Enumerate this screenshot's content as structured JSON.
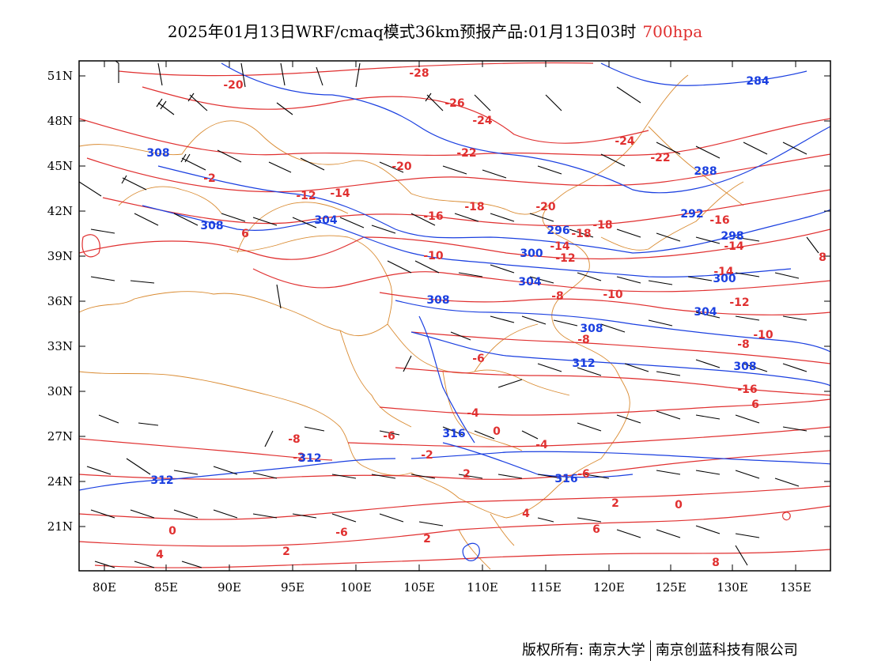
{
  "title": {
    "main": "2025年01月13日WRF/cmaq模式36km预报产品:01月13日03时",
    "level": "700hpa"
  },
  "axes": {
    "lat_labels": [
      "51N",
      "48N",
      "45N",
      "42N",
      "39N",
      "36N",
      "33N",
      "30N",
      "27N",
      "24N",
      "21N"
    ],
    "lon_labels": [
      "80E",
      "85E",
      "90E",
      "95E",
      "100E",
      "105E",
      "110E",
      "115E",
      "120E",
      "125E",
      "130E",
      "135E"
    ]
  },
  "contour_labels": {
    "temperature": [
      "-20",
      "-28",
      "-26",
      "-24",
      "-24",
      "-20",
      "-22",
      "-22",
      "-20",
      "-18",
      "-16",
      "-16",
      "-14",
      "-12",
      "-14",
      "-10",
      "-18",
      "-18",
      "-14",
      "-12",
      "-10",
      "-8",
      "-6",
      "-8",
      "-14",
      "-12",
      "-10",
      "-8",
      "-6",
      "-4",
      "-2",
      "-6",
      "-8",
      "-6",
      "-4",
      "-2",
      "0",
      "0",
      "2",
      "2",
      "0",
      "2",
      "2",
      "4",
      "4",
      "6",
      "6",
      "8",
      "6",
      "-2",
      "8",
      "-16"
    ],
    "geopotential": [
      "284",
      "308",
      "308",
      "304",
      "288",
      "292",
      "296",
      "298",
      "300",
      "304",
      "300",
      "308",
      "308",
      "304",
      "312",
      "308",
      "312",
      "312",
      "316",
      "316"
    ]
  },
  "footer": {
    "left": "版权所有: 南京大学",
    "right": "南京创蓝科技有限公司"
  },
  "colors": {
    "temperature": "#e03030",
    "geopotential": "#1a3fe0",
    "boundary": "#d98a30",
    "wind": "#000000"
  }
}
